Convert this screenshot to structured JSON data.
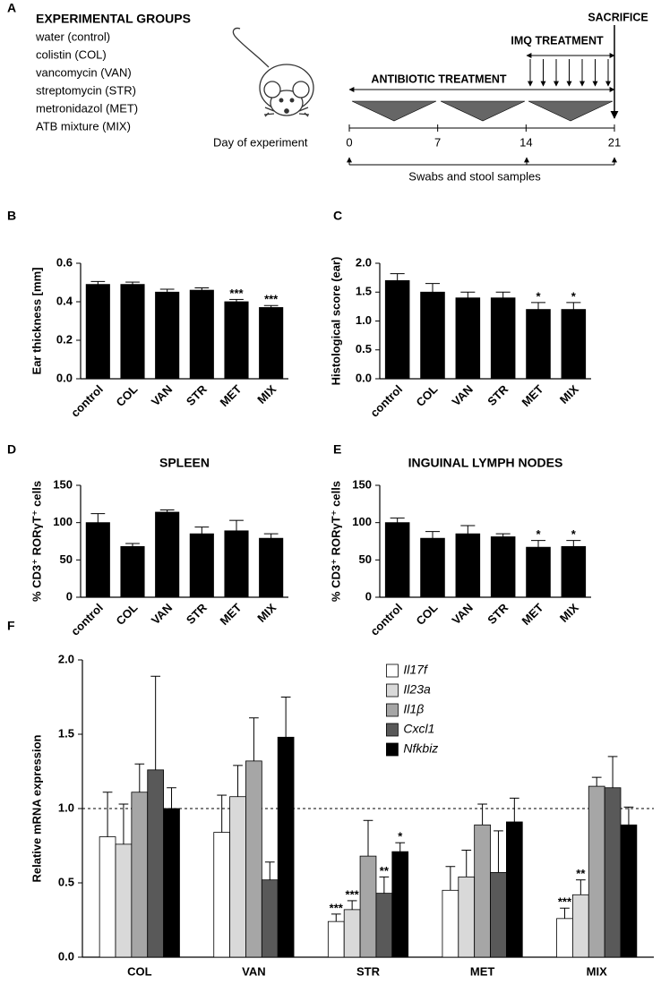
{
  "diagram": {
    "panel": "A",
    "heading": "EXPERIMENTAL GROUPS",
    "groups": [
      "water (control)",
      "colistin (COL)",
      "vancomycin (VAN)",
      "streptomycin (STR)",
      "metronidazol (MET)",
      "ATB mixture (MIX)"
    ],
    "day_label": "Day of experiment",
    "days": [
      0,
      7,
      14,
      21
    ],
    "antibiotic": "ANTIBIOTIC TREATMENT",
    "imq": "IMQ TREATMENT",
    "sacrifice": "SACRIFICE",
    "samples": "Swabs and stool samples"
  },
  "chart_data": [
    {
      "type": "bar",
      "panel": "B",
      "ylabel": "Ear thickness [mm]",
      "categories": [
        "control",
        "COL",
        "VAN",
        "STR",
        "MET",
        "MIX"
      ],
      "values": [
        0.49,
        0.49,
        0.45,
        0.46,
        0.4,
        0.37
      ],
      "errors": [
        0.015,
        0.012,
        0.015,
        0.012,
        0.012,
        0.01
      ],
      "annotations": [
        null,
        null,
        null,
        null,
        "***",
        "***"
      ],
      "color": "#000000",
      "ylim": [
        0,
        0.6
      ],
      "yticks": [
        {
          "value": 0,
          "label": "0.0"
        },
        0.2,
        0.4,
        0.6
      ]
    },
    {
      "type": "bar",
      "panel": "C",
      "ylabel": "Histological score (ear)",
      "categories": [
        "control",
        "COL",
        "VAN",
        "STR",
        "MET",
        "MIX"
      ],
      "values": [
        1.7,
        1.5,
        1.4,
        1.4,
        1.2,
        1.2
      ],
      "errors": [
        0.12,
        0.15,
        0.1,
        0.1,
        0.12,
        0.12
      ],
      "annotations": [
        null,
        null,
        null,
        null,
        "*",
        "*"
      ],
      "color": "#000000",
      "ylim": [
        0,
        2
      ],
      "yticks": [
        {
          "value": 0,
          "label": "0.0"
        },
        0.5,
        {
          "value": 1,
          "label": "1.0"
        },
        1.5,
        {
          "value": 2,
          "label": "2.0"
        }
      ]
    },
    {
      "type": "bar",
      "panel": "D",
      "title": "SPLEEN",
      "ylabel": "% CD3⁺ RORγT⁺ cells",
      "categories": [
        "control",
        "COL",
        "VAN",
        "STR",
        "MET",
        "MIX"
      ],
      "values": [
        100,
        68,
        114,
        85,
        89,
        79
      ],
      "errors": [
        12,
        4,
        3,
        9,
        14,
        6
      ],
      "color": "#000000",
      "ylim": [
        0,
        150
      ],
      "yticks": [
        0,
        50,
        100,
        150
      ]
    },
    {
      "type": "bar",
      "panel": "E",
      "title": "INGUINAL LYMPH NODES",
      "ylabel": "% CD3⁺ RORγT⁺ cells",
      "categories": [
        "control",
        "COL",
        "VAN",
        "STR",
        "MET",
        "MIX"
      ],
      "values": [
        100,
        79,
        85,
        81,
        67,
        68
      ],
      "errors": [
        6,
        9,
        11,
        4,
        9,
        8
      ],
      "annotations": [
        null,
        null,
        null,
        null,
        "*",
        "*"
      ],
      "color": "#000000",
      "ylim": [
        0,
        150
      ],
      "yticks": [
        0,
        50,
        100,
        150
      ]
    },
    {
      "type": "bar",
      "panel": "F",
      "ylabel": "Relative mRNA expression",
      "categories": [
        "COL",
        "VAN",
        "STR",
        "MET",
        "MIX"
      ],
      "series": [
        {
          "name": "Il17f",
          "color": "#ffffff",
          "values": [
            0.81,
            0.84,
            0.24,
            0.45,
            0.26
          ],
          "errors": [
            0.3,
            0.25,
            0.05,
            0.16,
            0.07
          ],
          "annotations": [
            null,
            null,
            "***",
            null,
            "***"
          ]
        },
        {
          "name": "Il23a",
          "color": "#d9d9d9",
          "values": [
            0.76,
            1.08,
            0.32,
            0.54,
            0.42
          ],
          "errors": [
            0.27,
            0.21,
            0.06,
            0.18,
            0.1
          ],
          "annotations": [
            null,
            null,
            "***",
            null,
            "**"
          ]
        },
        {
          "name": "Il1β",
          "color": "#a6a6a6",
          "values": [
            1.11,
            1.32,
            0.68,
            0.89,
            1.15
          ],
          "errors": [
            0.19,
            0.29,
            0.24,
            0.14,
            0.06
          ]
        },
        {
          "name": "Cxcl1",
          "color": "#595959",
          "values": [
            1.26,
            0.52,
            0.43,
            0.57,
            1.14
          ],
          "errors": [
            0.63,
            0.12,
            0.11,
            0.28,
            0.21
          ],
          "annotations": [
            null,
            null,
            "**",
            null,
            null
          ]
        },
        {
          "name": "Nfkbiz",
          "color": "#000000",
          "values": [
            1.0,
            1.48,
            0.71,
            0.91,
            0.89
          ],
          "errors": [
            0.14,
            0.27,
            0.06,
            0.16,
            0.12
          ],
          "annotations": [
            null,
            null,
            "*",
            null,
            null
          ]
        }
      ],
      "reference_line": 1,
      "legend": "upper-center",
      "ylim": [
        0,
        2
      ],
      "yticks": [
        {
          "value": 0,
          "label": "0.0"
        },
        0.5,
        {
          "value": 1,
          "label": "1.0"
        },
        1.5,
        {
          "value": 2,
          "label": "2.0"
        }
      ]
    }
  ]
}
